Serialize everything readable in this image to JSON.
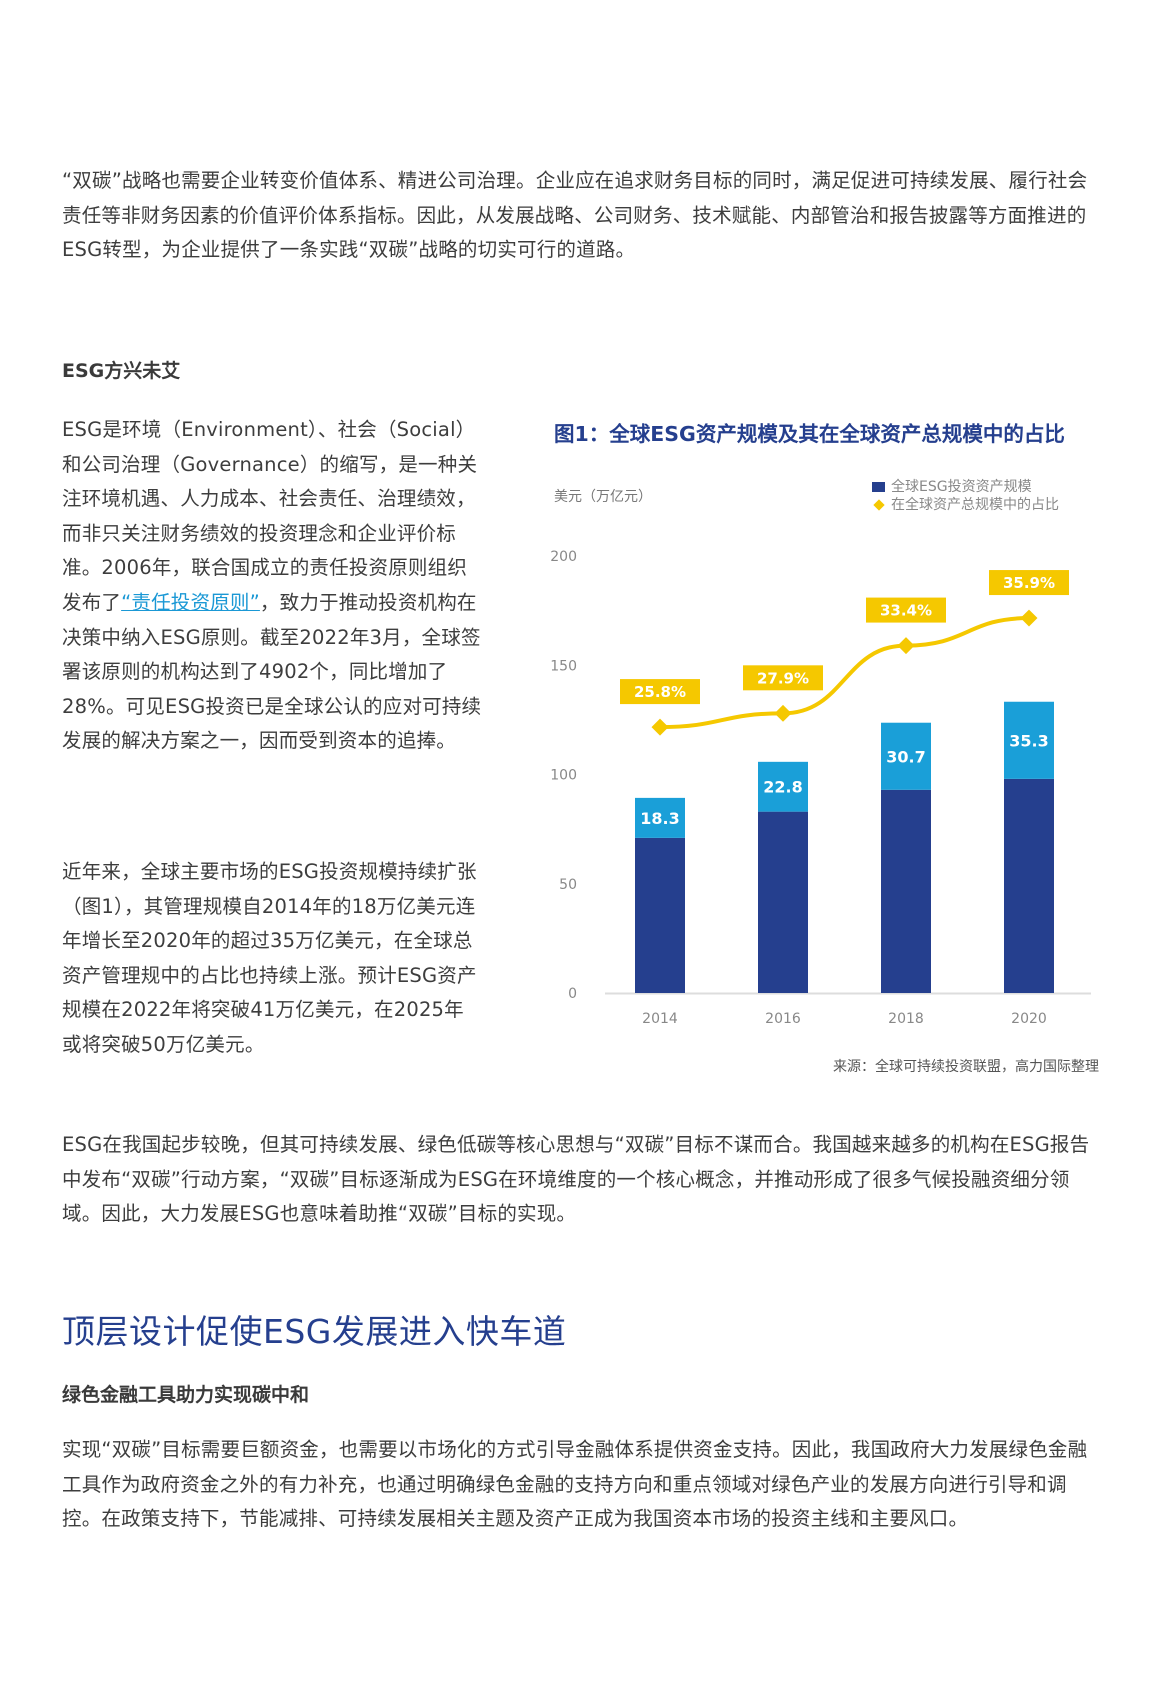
{
  "intro": {
    "text": "“双碳”战略也需要企业转变价值体系、精进公司治理。企业应在追求财务目标的同时，满足促进可持续发展、履行社会责任等非财务因素的价值评价体系指标。因此，从发展战略、公司财务、技术赋能、内部管治和报告披露等方面推进的ESG转型，为企业提供了一条实践“双碳”战略的切实可行的道路。"
  },
  "section1": {
    "heading": "ESG方兴未艾",
    "para1_before_link": "ESG是环境（Environment）、社会（Social）和公司治理（Governance）的缩写，是一种关注环境机遇、人力成本、社会责任、治理绩效，而非只关注财务绩效的投资理念和企业评价标准。2006年，联合国成立的责任投资原则组织发布了",
    "para1_link": "“责任投资原则”",
    "para1_after_link": "，致力于推动投资机构在决策中纳入ESG原则。截至2022年3月，全球签署该原则的机构达到了4902个，同比增加了28%。可见ESG投资已是全球公认的应对可持续发展的解决方案之一，因而受到资本的追捧。",
    "para2": "近年来，全球主要市场的ESG投资规模持续扩张（图1），其管理规模自2014年的18万亿美元连年增长至2020年的超过35万亿美元，在全球总资产管理规中的占比也持续上涨。预计ESG资产规模在2022年将突破41万亿美元，在2025年或将突破50万亿美元。",
    "para3": "ESG在我国起步较晚，但其可持续发展、绿色低碳等核心思想与“双碳”目标不谋而合。我国越来越多的机构在ESG报告中发布“双碳”行动方案，“双碳”目标逐渐成为ESG在环境维度的一个核心概念，并推动形成了很多气候投融资细分领域。因此，大力发展ESG也意味着助推“双碳”目标的实现。"
  },
  "figure": {
    "title": "图1：全球ESG资产规模及其在全球资产总规模中的占比",
    "source": "来源：全球可持续投资联盟，高力国际整理"
  },
  "chart_data": {
    "type": "bar",
    "title": "图1：全球ESG资产规模及其在全球资产总规模中的占比",
    "ylabel": "美元（万亿元）",
    "xlabel": "",
    "ylim": [
      0,
      200
    ],
    "yticks": [
      0,
      50,
      100,
      150,
      200
    ],
    "categories": [
      "2014",
      "2016",
      "2018",
      "2020"
    ],
    "legend_position": "top-right",
    "grid": false,
    "series": [
      {
        "name": "全球ESG投资资产规模",
        "kind": "bar-labeled-segment",
        "color": "#1a9fd8",
        "values": [
          18.3,
          22.8,
          30.7,
          35.3
        ],
        "labels": [
          "18.3",
          "22.8",
          "30.7",
          "35.3"
        ]
      },
      {
        "name": "bar-base",
        "kind": "bar-base",
        "color": "#253f8e",
        "values": [
          71,
          83,
          93,
          98
        ]
      },
      {
        "name": "在全球资产总规模中的占比",
        "kind": "line",
        "color": "#f5c800",
        "values": [
          25.8,
          27.9,
          33.4,
          35.9
        ],
        "labels": [
          "25.8%",
          "27.9%",
          "33.4%",
          "35.9%"
        ],
        "plot_y": [
          121.7,
          128,
          159,
          171.6
        ]
      }
    ],
    "legend": [
      "全球ESG投资资产规模",
      "在全球资产总规模中的占比"
    ],
    "colors": {
      "bar_dark": "#253f8e",
      "bar_light": "#1a9fd8",
      "line": "#f5c800",
      "axis": "#dddddd",
      "tick_text": "#888888"
    }
  },
  "section2": {
    "heading": "顶层设计促使ESG发展进入快车道",
    "subheading": "绿色金融工具助力实现碳中和",
    "para": "实现“双碳”目标需要巨额资金，也需要以市场化的方式引导金融体系提供资金支持。因此，我国政府大力发展绿色金融工具作为政府资金之外的有力补充，也通过明确绿色金融的支持方向和重点领域对绿色产业的发展方向进行引导和调控。在政策支持下，节能减排、可持续发展相关主题及资产正成为我国资本市场的投资主线和主要风口。"
  }
}
